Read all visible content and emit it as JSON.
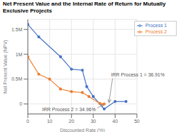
{
  "chart_data": {
    "type": "line",
    "title": "Net Present Value and the Internal Rate of Return for Mutually Exclusive Projects",
    "x_label": "Discounted Rate (%)",
    "y_label": "Net Present Value (NPV)",
    "series": [
      {
        "name": "Process 1",
        "color": "#4472c4",
        "marker": "o",
        "x": [
          0,
          5,
          15,
          20,
          25,
          27,
          30,
          35,
          40,
          45
        ],
        "values": [
          1600000,
          1350000,
          950000,
          700000,
          680000,
          350000,
          150000,
          -100000,
          50000,
          50000
        ]
      },
      {
        "name": "Process 2",
        "color": "#ed7d31",
        "marker": "o",
        "x": [
          0,
          5,
          10,
          15,
          20,
          25,
          28,
          33,
          35
        ],
        "values": [
          950000,
          600000,
          500000,
          300000,
          250000,
          230000,
          150000,
          10000,
          0
        ]
      }
    ],
    "annotations": [
      {
        "text": "IRR Process 1 = 36.91%",
        "x": 36.91,
        "y": 0
      },
      {
        "text": "IRR Process 2 = 34.96%",
        "x": 34.96,
        "y": 0
      }
    ],
    "xlim": [
      0,
      50
    ],
    "ylim": [
      -200000,
      1700000
    ],
    "xticks": [
      0,
      10,
      20,
      30,
      40,
      50
    ],
    "yticks": [
      0,
      {
        "value": 500000,
        "label": "0.5M"
      },
      {
        "value": 1000000,
        "label": "1M"
      },
      {
        "value": 1500000,
        "label": "1.5M"
      }
    ],
    "grid": true,
    "legend": "upper right"
  }
}
